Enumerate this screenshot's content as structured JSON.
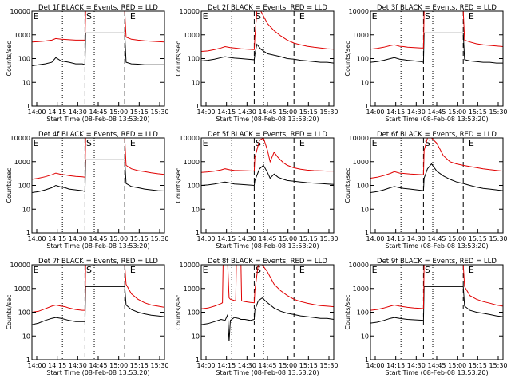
{
  "colors": {
    "events": "#000000",
    "lld": "#e00000"
  },
  "common": {
    "ylabel": "Counts/sec",
    "xlabel": "Start Time (08-Feb-08 13:53:20)",
    "xticks": [
      "14:00",
      "14:15",
      "14:30",
      "14:45",
      "15:00",
      "15:15",
      "15:30"
    ],
    "yticks": [
      "1",
      "10",
      "100",
      "1000",
      "10000"
    ],
    "marker_labels": [
      "E",
      "S",
      "E"
    ]
  },
  "chart_data": [
    {
      "type": "line",
      "title": "Det 1f BLACK = Events, RED = LLD",
      "x_range_min": [
        0,
        100
      ],
      "ylim_log10": [
        0,
        4
      ],
      "dotted_min": [
        23,
        47
      ],
      "dashed_min": [
        40,
        70
      ],
      "series": [
        {
          "name": "Events",
          "x": [
            0,
            5,
            10,
            15,
            18,
            22,
            25,
            28,
            33,
            38,
            40,
            40.5,
            70,
            71,
            75,
            80,
            85,
            90,
            95,
            100
          ],
          "y": [
            50,
            55,
            60,
            70,
            110,
            80,
            75,
            70,
            60,
            60,
            55,
            1200,
            1200,
            70,
            60,
            58,
            55,
            55,
            55,
            55
          ]
        },
        {
          "name": "LLD",
          "x": [
            0,
            5,
            10,
            15,
            18,
            22,
            25,
            28,
            33,
            38,
            40,
            40.5,
            70,
            71,
            75,
            80,
            85,
            90,
            95,
            100
          ],
          "y": [
            500,
            520,
            550,
            600,
            700,
            650,
            640,
            620,
            600,
            600,
            600,
            10000,
            10000,
            800,
            650,
            600,
            560,
            540,
            520,
            500
          ]
        }
      ]
    },
    {
      "type": "line",
      "title": "Det 2f BLACK = Events, RED = LLD",
      "x_range_min": [
        0,
        100
      ],
      "ylim_log10": [
        0,
        4
      ],
      "dotted_min": [
        23,
        47
      ],
      "dashed_min": [
        40,
        70
      ],
      "series": [
        {
          "name": "Events",
          "x": [
            0,
            5,
            10,
            15,
            18,
            22,
            25,
            30,
            35,
            40,
            40.5,
            42,
            45,
            50,
            55,
            60,
            65,
            70,
            75,
            80,
            85,
            90,
            95,
            100
          ],
          "y": [
            80,
            85,
            95,
            110,
            120,
            110,
            105,
            100,
            95,
            90,
            150,
            400,
            250,
            160,
            140,
            120,
            100,
            95,
            85,
            80,
            75,
            70,
            70,
            65
          ]
        },
        {
          "name": "LLD",
          "x": [
            0,
            5,
            10,
            15,
            18,
            22,
            25,
            30,
            35,
            40,
            40.5,
            42,
            45,
            50,
            55,
            60,
            65,
            70,
            75,
            80,
            85,
            90,
            95,
            100
          ],
          "y": [
            200,
            210,
            240,
            280,
            320,
            290,
            280,
            260,
            250,
            240,
            800,
            10000,
            10000,
            3000,
            1500,
            900,
            600,
            450,
            380,
            330,
            300,
            280,
            260,
            250
          ]
        }
      ]
    },
    {
      "type": "line",
      "title": "Det 3f BLACK = Events, RED = LLD",
      "x_range_min": [
        0,
        100
      ],
      "ylim_log10": [
        0,
        4
      ],
      "dotted_min": [
        23,
        47
      ],
      "dashed_min": [
        40,
        70
      ],
      "series": [
        {
          "name": "Events",
          "x": [
            0,
            5,
            10,
            15,
            18,
            22,
            25,
            28,
            33,
            38,
            40,
            40.5,
            70,
            71,
            75,
            80,
            85,
            90,
            95,
            100
          ],
          "y": [
            70,
            75,
            85,
            100,
            110,
            95,
            90,
            85,
            80,
            75,
            70,
            1200,
            1200,
            90,
            80,
            75,
            70,
            70,
            65,
            65
          ]
        },
        {
          "name": "LLD",
          "x": [
            0,
            5,
            10,
            15,
            18,
            22,
            25,
            28,
            33,
            38,
            40,
            40.5,
            70,
            71,
            75,
            80,
            85,
            90,
            95,
            100
          ],
          "y": [
            250,
            270,
            300,
            350,
            380,
            330,
            320,
            300,
            290,
            280,
            280,
            10000,
            10000,
            600,
            500,
            420,
            380,
            360,
            340,
            320
          ]
        }
      ]
    },
    {
      "type": "line",
      "title": "Det 4f BLACK = Events, RED = LLD",
      "x_range_min": [
        0,
        100
      ],
      "ylim_log10": [
        0,
        4
      ],
      "dotted_min": [
        23,
        47
      ],
      "dashed_min": [
        40,
        70
      ],
      "series": [
        {
          "name": "Events",
          "x": [
            0,
            5,
            10,
            15,
            18,
            22,
            25,
            28,
            33,
            38,
            40,
            40.5,
            70,
            71,
            75,
            80,
            85,
            90,
            95,
            100
          ],
          "y": [
            50,
            55,
            65,
            80,
            100,
            85,
            80,
            70,
            65,
            60,
            55,
            1200,
            1200,
            120,
            90,
            80,
            70,
            65,
            60,
            58
          ]
        },
        {
          "name": "LLD",
          "x": [
            0,
            5,
            10,
            15,
            18,
            22,
            25,
            28,
            33,
            38,
            40,
            40.5,
            70,
            71,
            75,
            80,
            85,
            90,
            95,
            100
          ],
          "y": [
            180,
            200,
            230,
            280,
            330,
            290,
            280,
            260,
            240,
            230,
            220,
            10000,
            10000,
            700,
            500,
            420,
            380,
            340,
            310,
            290
          ]
        }
      ]
    },
    {
      "type": "line",
      "title": "Det 5f BLACK = Events, RED = LLD",
      "x_range_min": [
        0,
        100
      ],
      "ylim_log10": [
        0,
        4
      ],
      "dotted_min": [
        23,
        47
      ],
      "dashed_min": [
        40,
        70
      ],
      "series": [
        {
          "name": "Events",
          "x": [
            0,
            5,
            10,
            15,
            18,
            22,
            25,
            30,
            35,
            40,
            40.5,
            44,
            47,
            50,
            52,
            55,
            58,
            62,
            65,
            70,
            75,
            80,
            85,
            90,
            95,
            100
          ],
          "y": [
            100,
            105,
            115,
            130,
            140,
            125,
            115,
            110,
            105,
            100,
            160,
            500,
            700,
            350,
            200,
            300,
            220,
            180,
            160,
            150,
            140,
            130,
            125,
            120,
            115,
            110
          ]
        },
        {
          "name": "LLD",
          "x": [
            0,
            5,
            10,
            15,
            18,
            22,
            25,
            30,
            35,
            40,
            40.5,
            44,
            47,
            50,
            52,
            55,
            58,
            62,
            65,
            70,
            75,
            80,
            85,
            90,
            95,
            100
          ],
          "y": [
            350,
            370,
            400,
            450,
            500,
            450,
            430,
            420,
            410,
            400,
            1500,
            8000,
            10000,
            3000,
            1000,
            2500,
            1500,
            900,
            700,
            550,
            480,
            440,
            420,
            410,
            400,
            400
          ]
        }
      ]
    },
    {
      "type": "line",
      "title": "Det 6f BLACK = Events, RED = LLD",
      "x_range_min": [
        0,
        100
      ],
      "ylim_log10": [
        0,
        4
      ],
      "dotted_min": [
        23,
        47
      ],
      "dashed_min": [
        40,
        70
      ],
      "series": [
        {
          "name": "Events",
          "x": [
            0,
            5,
            10,
            15,
            18,
            22,
            25,
            30,
            35,
            40,
            40.5,
            43,
            46,
            50,
            55,
            60,
            65,
            70,
            75,
            80,
            85,
            90,
            95,
            100
          ],
          "y": [
            50,
            55,
            65,
            80,
            90,
            80,
            75,
            70,
            65,
            60,
            200,
            500,
            800,
            400,
            250,
            180,
            140,
            120,
            100,
            85,
            75,
            70,
            65,
            60
          ]
        },
        {
          "name": "LLD",
          "x": [
            0,
            5,
            10,
            15,
            18,
            22,
            25,
            30,
            35,
            40,
            40.5,
            43,
            46,
            50,
            55,
            60,
            65,
            70,
            75,
            80,
            85,
            90,
            95,
            100
          ],
          "y": [
            200,
            220,
            260,
            320,
            380,
            330,
            320,
            300,
            290,
            280,
            3000,
            10000,
            10000,
            6000,
            1800,
            1000,
            800,
            700,
            620,
            560,
            500,
            460,
            430,
            400
          ]
        }
      ]
    },
    {
      "type": "line",
      "title": "Det 7f BLACK = Events, RED = LLD",
      "x_range_min": [
        0,
        100
      ],
      "ylim_log10": [
        0,
        4
      ],
      "dotted_min": [
        23,
        47
      ],
      "dashed_min": [
        40,
        70
      ],
      "series": [
        {
          "name": "Events",
          "x": [
            0,
            5,
            10,
            15,
            18,
            22,
            25,
            28,
            33,
            38,
            40,
            40.5,
            70,
            71,
            75,
            80,
            85,
            90,
            95,
            100
          ],
          "y": [
            30,
            35,
            45,
            55,
            60,
            55,
            50,
            45,
            40,
            40,
            40,
            1200,
            1200,
            200,
            130,
            100,
            85,
            75,
            70,
            65
          ]
        },
        {
          "name": "LLD",
          "x": [
            0,
            5,
            10,
            15,
            18,
            22,
            25,
            28,
            33,
            38,
            40,
            40.5,
            70,
            71,
            75,
            80,
            85,
            90,
            95,
            100
          ],
          "y": [
            100,
            110,
            140,
            180,
            200,
            180,
            170,
            150,
            130,
            120,
            120,
            10000,
            10000,
            1500,
            600,
            350,
            250,
            200,
            180,
            160
          ]
        }
      ]
    },
    {
      "type": "line",
      "title": "Det 8f BLACK = Events, RED = LLD",
      "x_range_min": [
        0,
        100
      ],
      "ylim_log10": [
        0,
        4
      ],
      "dotted_min": [
        23,
        47
      ],
      "dashed_min": [
        40,
        70
      ],
      "series": [
        {
          "name": "Events",
          "x": [
            0,
            5,
            10,
            15,
            18,
            20,
            21,
            22,
            25,
            28,
            30,
            33,
            37,
            40,
            40.5,
            43,
            46,
            50,
            55,
            60,
            65,
            70,
            75,
            80,
            85,
            90,
            95,
            100
          ],
          "y": [
            30,
            33,
            40,
            50,
            45,
            80,
            6,
            45,
            60,
            55,
            50,
            50,
            45,
            50,
            120,
            300,
            400,
            250,
            150,
            110,
            90,
            80,
            70,
            65,
            60,
            55,
            55,
            50
          ]
        },
        {
          "name": "LLD",
          "x": [
            0,
            5,
            10,
            15,
            16,
            16.5,
            20,
            21,
            22,
            26,
            26.5,
            30,
            30.5,
            33,
            37,
            40,
            40.5,
            43,
            46,
            50,
            55,
            60,
            65,
            70,
            75,
            80,
            85,
            90,
            95,
            100
          ],
          "y": [
            140,
            150,
            180,
            230,
            250,
            10000,
            10000,
            400,
            350,
            300,
            10000,
            10000,
            300,
            280,
            260,
            250,
            800,
            10000,
            10000,
            5000,
            1500,
            800,
            500,
            350,
            280,
            240,
            210,
            190,
            180,
            170
          ]
        }
      ]
    },
    {
      "type": "line",
      "title": "Det 9f BLACK = Events, RED = LLD",
      "x_range_min": [
        0,
        100
      ],
      "ylim_log10": [
        0,
        4
      ],
      "dotted_min": [
        23,
        47
      ],
      "dashed_min": [
        40,
        70
      ],
      "series": [
        {
          "name": "Events",
          "x": [
            0,
            5,
            10,
            15,
            18,
            22,
            25,
            28,
            33,
            38,
            40,
            40.5,
            70,
            71,
            75,
            80,
            85,
            90,
            95,
            100
          ],
          "y": [
            35,
            38,
            45,
            55,
            60,
            55,
            52,
            50,
            48,
            46,
            45,
            1200,
            1200,
            180,
            120,
            100,
            90,
            80,
            70,
            65
          ]
        },
        {
          "name": "LLD",
          "x": [
            0,
            5,
            10,
            15,
            18,
            22,
            25,
            28,
            33,
            38,
            40,
            40.5,
            70,
            71,
            75,
            80,
            85,
            90,
            95,
            100
          ],
          "y": [
            120,
            130,
            150,
            180,
            200,
            180,
            170,
            160,
            150,
            145,
            140,
            10000,
            10000,
            1200,
            500,
            350,
            280,
            240,
            200,
            180
          ]
        }
      ]
    }
  ]
}
